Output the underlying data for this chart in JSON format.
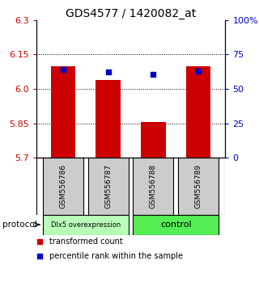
{
  "title": "GDS4577 / 1420082_at",
  "samples": [
    "GSM556786",
    "GSM556787",
    "GSM556788",
    "GSM556789"
  ],
  "red_values": [
    6.1,
    6.04,
    5.855,
    6.1
  ],
  "blue_values": [
    6.085,
    6.075,
    6.065,
    6.078
  ],
  "y_min": 5.7,
  "y_max": 6.3,
  "y_ticks_red": [
    5.7,
    5.85,
    6.0,
    6.15,
    6.3
  ],
  "y_ticks_blue": [
    0,
    25,
    50,
    75,
    100
  ],
  "y_ticks_blue_labels": [
    "0",
    "25",
    "50",
    "75",
    "100%"
  ],
  "dotted_lines": [
    5.85,
    6.0,
    6.15
  ],
  "group1_label": "Dlx5 overexpression",
  "group2_label": "control",
  "group1_indices": [
    0,
    1
  ],
  "group2_indices": [
    2,
    3
  ],
  "group1_color": "#b8ffb8",
  "group2_color": "#55ee55",
  "bar_color": "#cc0000",
  "dot_color": "#0000cc",
  "bar_width": 0.55,
  "protocol_label": "protocol",
  "legend_red_label": "transformed count",
  "legend_blue_label": "percentile rank within the sample",
  "title_fontsize": 10,
  "axis_label_color_red": "#cc0000",
  "axis_label_color_blue": "#0000cc",
  "sample_box_color": "#cccccc",
  "bg_color": "#ffffff"
}
